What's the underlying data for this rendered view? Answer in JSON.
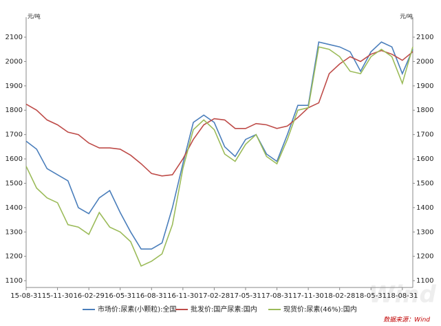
{
  "chart_data": {
    "type": "line",
    "y_unit": "元/吨",
    "y2_unit": "元/吨",
    "source": "数据来源：Wind",
    "watermark": "Wind",
    "categories": [
      "15-08-31",
      null,
      null,
      "15-11-30",
      null,
      null,
      "16-02-29",
      null,
      null,
      "16-05-31",
      null,
      null,
      "16-08-31",
      null,
      null,
      "16-11-30",
      null,
      null,
      "17-02-28",
      null,
      null,
      "17-05-31",
      null,
      null,
      "17-08-31",
      null,
      null,
      "17-11-30",
      null,
      null,
      "18-02-28",
      null,
      null,
      "18-05-31",
      null,
      null,
      "18-08-31",
      null
    ],
    "series": [
      {
        "name": "市场价:尿素(小颗粒):全国",
        "color": "#4a7ebb",
        "values": [
          1673,
          1640,
          1560,
          1535,
          1510,
          1400,
          1375,
          1440,
          1470,
          1380,
          1300,
          1230,
          1230,
          1255,
          1400,
          1580,
          1750,
          1780,
          1750,
          1650,
          1610,
          1680,
          1700,
          1620,
          1590,
          1700,
          1820,
          1820,
          2080,
          2070,
          2060,
          2040,
          1960,
          2040,
          2080,
          2060,
          1950,
          2050
        ]
      },
      {
        "name": "批发价:国产尿素:国内",
        "color": "#be4b48",
        "values": [
          1825,
          1800,
          1760,
          1740,
          1710,
          1700,
          1665,
          1645,
          1645,
          1640,
          1615,
          1580,
          1540,
          1530,
          1535,
          1600,
          1680,
          1740,
          1765,
          1760,
          1725,
          1725,
          1745,
          1740,
          1725,
          1735,
          1770,
          1810,
          1830,
          1950,
          1990,
          2020,
          2000,
          2030,
          2045,
          2030,
          2005,
          2040
        ]
      },
      {
        "name": "现货价:尿素(46%):国内",
        "color": "#9bbb59",
        "values": [
          1570,
          1480,
          1440,
          1420,
          1330,
          1320,
          1290,
          1380,
          1320,
          1300,
          1260,
          1160,
          1180,
          1210,
          1330,
          1560,
          1720,
          1760,
          1720,
          1620,
          1590,
          1660,
          1700,
          1610,
          1580,
          1680,
          1800,
          1810,
          2060,
          2050,
          2020,
          1960,
          1950,
          2020,
          2050,
          2020,
          1910,
          2060
        ]
      }
    ],
    "ylim": [
      1072,
      2182
    ],
    "yticks": [
      1100,
      1200,
      1300,
      1400,
      1500,
      1600,
      1700,
      1800,
      1900,
      2000,
      2100
    ],
    "y2lim": [
      1072,
      2182
    ],
    "y2ticks": [
      1100,
      1200,
      1300,
      1400,
      1500,
      1600,
      1700,
      1800,
      1900,
      2000,
      2100
    ]
  }
}
